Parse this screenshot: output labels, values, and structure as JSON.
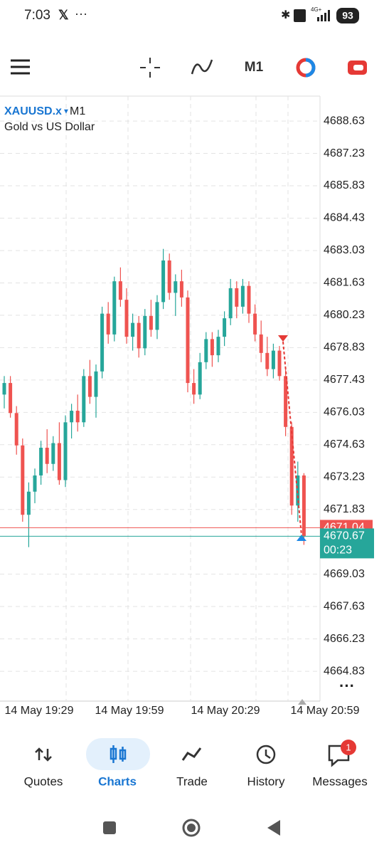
{
  "status": {
    "time": "7:03",
    "network": "4G+",
    "battery": "93"
  },
  "toolbar": {
    "timeframe": "M1"
  },
  "chart_data": {
    "type": "candlestick",
    "symbol": "XAUUSD.x",
    "timeframe": "M1",
    "description": "Gold vs US Dollar",
    "up_color": "#26a69a",
    "down_color": "#ef5350",
    "open": [
      4676.8,
      4677.3,
      4676.0,
      4674.6,
      4671.6,
      4672.6,
      4673.3,
      4674.5,
      4673.8,
      4674.7,
      4673.1,
      4675.6,
      4676.1,
      4675.6,
      4677.6,
      4676.7,
      4677.8,
      4680.3,
      4679.4,
      4681.7,
      4680.9,
      4679.3,
      4679.9,
      4678.8,
      4680.2,
      4679.6,
      4680.8,
      4682.6,
      4681.2,
      4681.7,
      4681.0,
      4677.3,
      4676.8,
      4678.2,
      4679.2,
      4678.5,
      4679.3,
      4680.1,
      4681.4,
      4680.6,
      4681.5,
      4680.3,
      4679.4,
      4678.6,
      4677.9,
      4678.7,
      4677.6,
      4675.4,
      4672.0,
      4673.3
    ],
    "high": [
      4677.6,
      4677.6,
      4676.3,
      4674.9,
      4673.0,
      4673.6,
      4674.8,
      4675.3,
      4675.0,
      4675.6,
      4675.9,
      4676.4,
      4676.8,
      4677.9,
      4678.3,
      4678.1,
      4680.6,
      4680.8,
      4681.9,
      4682.3,
      4681.4,
      4680.3,
      4680.2,
      4680.5,
      4680.9,
      4681.1,
      4683.1,
      4682.9,
      4682.0,
      4682.2,
      4681.3,
      4677.9,
      4678.6,
      4679.5,
      4679.5,
      4679.6,
      4680.4,
      4681.8,
      4681.7,
      4681.8,
      4681.7,
      4680.7,
      4680.0,
      4679.3,
      4679.0,
      4678.9,
      4677.9,
      4675.6,
      4673.9,
      4673.4
    ],
    "low": [
      4676.2,
      4675.8,
      4674.2,
      4671.3,
      4670.2,
      4672.1,
      4672.9,
      4673.4,
      4673.5,
      4672.9,
      4672.8,
      4674.9,
      4675.2,
      4675.4,
      4676.4,
      4675.8,
      4677.5,
      4679.0,
      4679.1,
      4680.6,
      4679.0,
      4678.7,
      4678.4,
      4678.5,
      4679.3,
      4679.2,
      4680.5,
      4680.9,
      4680.2,
      4680.6,
      4676.9,
      4676.4,
      4676.6,
      4677.9,
      4678.0,
      4678.2,
      4678.9,
      4679.8,
      4680.1,
      4680.3,
      4679.9,
      4679.1,
      4678.2,
      4677.6,
      4677.5,
      4677.4,
      4675.0,
      4671.6,
      4671.3,
      4670.3
    ],
    "close": [
      4677.3,
      4676.0,
      4674.6,
      4671.6,
      4672.6,
      4673.3,
      4674.5,
      4673.8,
      4674.7,
      4673.1,
      4675.6,
      4676.1,
      4675.6,
      4677.6,
      4676.7,
      4677.8,
      4680.3,
      4679.4,
      4681.7,
      4680.9,
      4679.3,
      4679.9,
      4678.8,
      4680.2,
      4679.6,
      4680.8,
      4682.6,
      4681.2,
      4681.7,
      4681.0,
      4677.3,
      4676.8,
      4678.2,
      4679.2,
      4678.5,
      4679.3,
      4680.1,
      4681.4,
      4680.6,
      4681.5,
      4680.3,
      4679.4,
      4678.6,
      4677.9,
      4678.7,
      4677.6,
      4675.4,
      4672.0,
      4673.3,
      4670.67
    ],
    "ylim": [
      4663.54,
      4689.71
    ],
    "yticks": [
      4688.63,
      4687.23,
      4685.83,
      4684.43,
      4683.03,
      4681.63,
      4680.23,
      4678.83,
      4677.43,
      4676.03,
      4674.63,
      4673.23,
      4671.83,
      4669.03,
      4667.63,
      4666.23,
      4664.83
    ],
    "grid": true,
    "x_labels": [
      "14 May 19:29",
      "14 May 19:59",
      "14 May 20:29",
      "14 May 20:59"
    ],
    "ask": 4671.04,
    "ask_color": "#ef5350",
    "bid": 4670.67,
    "bid_color": "#26a69a",
    "timer": "00:23"
  },
  "nav": {
    "items": [
      "Quotes",
      "Charts",
      "Trade",
      "History",
      "Messages"
    ],
    "badge": "1"
  }
}
